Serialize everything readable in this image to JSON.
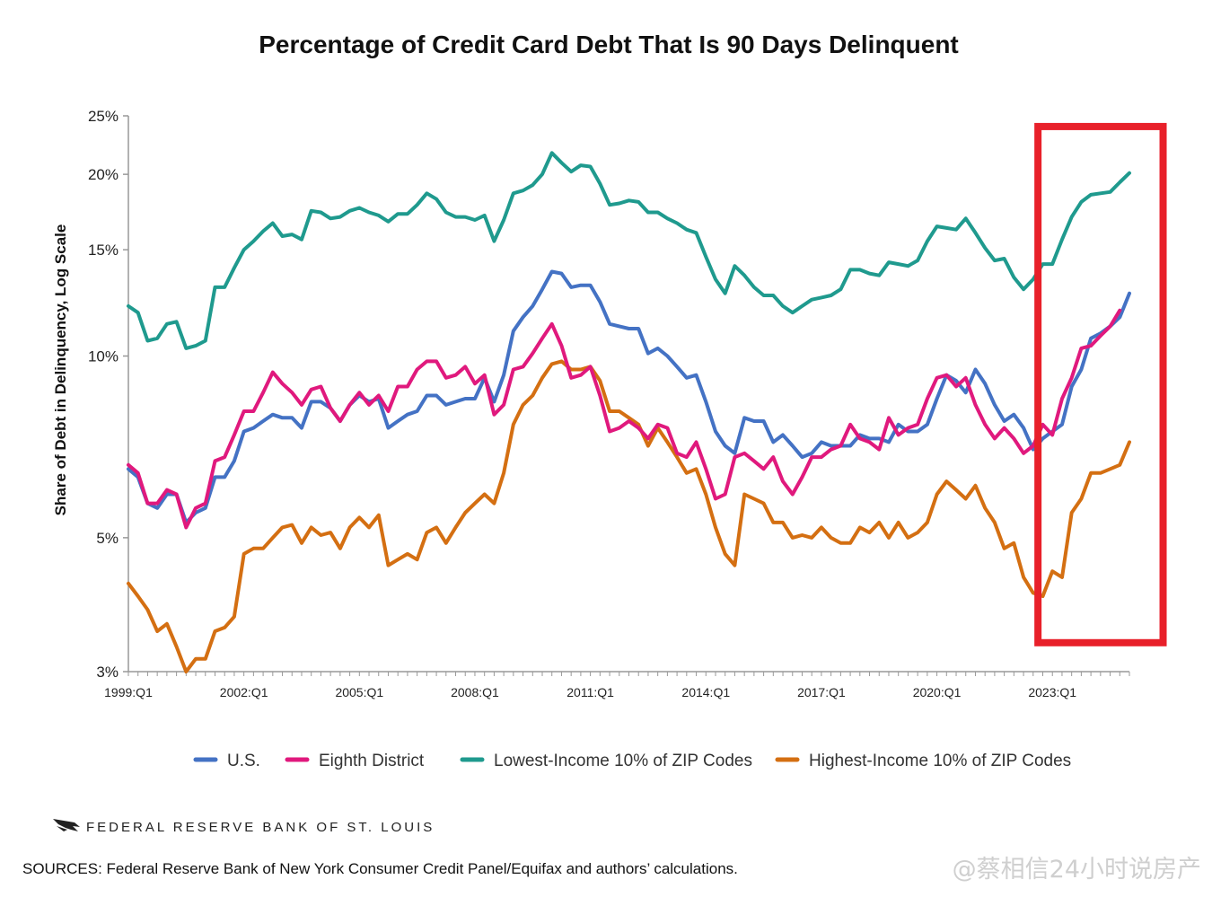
{
  "chart_data": {
    "type": "line",
    "title": "Percentage of Credit Card Debt That Is 90 Days Delinquent",
    "ylabel": "Share of Debt in Delinquency, Log Scale",
    "xlabel": "",
    "yscale": "log",
    "ylim": [
      3,
      25
    ],
    "x_start_year": 1999,
    "y_ticks": [
      {
        "value": 3,
        "label": "3%"
      },
      {
        "value": 5,
        "label": "5%"
      },
      {
        "value": 10,
        "label": "10%"
      },
      {
        "value": 15,
        "label": "15%"
      },
      {
        "value": 20,
        "label": "20%"
      },
      {
        "value": 25,
        "label": "25%"
      }
    ],
    "x_ticks": [
      {
        "index": 0,
        "label": "1999:Q1"
      },
      {
        "index": 12,
        "label": "2002:Q1"
      },
      {
        "index": 24,
        "label": "2005:Q1"
      },
      {
        "index": 36,
        "label": "2008:Q1"
      },
      {
        "index": 48,
        "label": "2011:Q1"
      },
      {
        "index": 60,
        "label": "2014:Q1"
      },
      {
        "index": 72,
        "label": "2017:Q1"
      },
      {
        "index": 84,
        "label": "2020:Q1"
      },
      {
        "index": 96,
        "label": "2023:Q1"
      }
    ],
    "highlight_range": {
      "from_index": 94.5,
      "to_index": 107.5,
      "ymin": 3.35,
      "ymax": 24.0,
      "color": "#e8202a"
    },
    "series": [
      {
        "name": "U.S.",
        "color": "#4472c4",
        "values": [
          6.5,
          6.3,
          5.7,
          5.6,
          5.9,
          5.9,
          5.3,
          5.5,
          5.6,
          6.3,
          6.3,
          6.7,
          7.5,
          7.6,
          7.8,
          8.0,
          7.9,
          7.9,
          7.6,
          8.4,
          8.4,
          8.2,
          7.8,
          8.3,
          8.6,
          8.4,
          8.5,
          7.6,
          7.8,
          8.0,
          8.1,
          8.6,
          8.6,
          8.3,
          8.4,
          8.5,
          8.5,
          9.2,
          8.4,
          9.3,
          11.0,
          11.6,
          12.1,
          12.9,
          13.8,
          13.7,
          13.0,
          13.1,
          13.1,
          12.3,
          11.3,
          11.2,
          11.1,
          11.1,
          10.1,
          10.3,
          10.0,
          9.6,
          9.2,
          9.3,
          8.4,
          7.5,
          7.1,
          6.9,
          7.9,
          7.8,
          7.8,
          7.2,
          7.4,
          7.1,
          6.8,
          6.9,
          7.2,
          7.1,
          7.1,
          7.1,
          7.4,
          7.3,
          7.3,
          7.2,
          7.7,
          7.5,
          7.5,
          7.7,
          8.5,
          9.3,
          9.1,
          8.7,
          9.5,
          9.0,
          8.3,
          7.8,
          8.0,
          7.6,
          7.0,
          7.3,
          7.5,
          7.7,
          8.9,
          9.5,
          10.7,
          10.9,
          11.2,
          11.6,
          12.7
        ]
      },
      {
        "name": "Eighth District",
        "color": "#e0197d",
        "values": [
          6.6,
          6.4,
          5.7,
          5.7,
          6.0,
          5.9,
          5.2,
          5.6,
          5.7,
          6.7,
          6.8,
          7.4,
          8.1,
          8.1,
          8.7,
          9.4,
          9.0,
          8.7,
          8.3,
          8.8,
          8.9,
          8.2,
          7.8,
          8.3,
          8.7,
          8.3,
          8.6,
          8.1,
          8.9,
          8.9,
          9.5,
          9.8,
          9.8,
          9.2,
          9.3,
          9.6,
          9.0,
          9.3,
          8.0,
          8.3,
          9.5,
          9.6,
          10.1,
          10.7,
          11.3,
          10.4,
          9.2,
          9.3,
          9.6,
          8.6,
          7.5,
          7.6,
          7.8,
          7.6,
          7.3,
          7.7,
          7.6,
          6.9,
          6.8,
          7.2,
          6.5,
          5.8,
          5.9,
          6.8,
          6.9,
          6.7,
          6.5,
          6.8,
          6.2,
          5.9,
          6.3,
          6.8,
          6.8,
          7.0,
          7.1,
          7.7,
          7.3,
          7.2,
          7.0,
          7.9,
          7.4,
          7.6,
          7.7,
          8.5,
          9.2,
          9.3,
          8.9,
          9.2,
          8.3,
          7.7,
          7.3,
          7.6,
          7.3,
          6.9,
          7.1,
          7.7,
          7.4,
          8.5,
          9.2,
          10.3,
          10.4,
          10.8,
          11.2,
          11.9
        ]
      },
      {
        "name": "Lowest-Income 10% of ZIP Codes",
        "color": "#1f9a8e",
        "values": [
          12.1,
          11.8,
          10.6,
          10.7,
          11.3,
          11.4,
          10.3,
          10.4,
          10.6,
          13.0,
          13.0,
          14.0,
          15.0,
          15.5,
          16.1,
          16.6,
          15.8,
          15.9,
          15.6,
          17.4,
          17.3,
          16.9,
          17.0,
          17.4,
          17.6,
          17.3,
          17.1,
          16.7,
          17.2,
          17.2,
          17.8,
          18.6,
          18.2,
          17.3,
          17.0,
          17.0,
          16.8,
          17.1,
          15.5,
          16.8,
          18.6,
          18.8,
          19.2,
          20.0,
          21.7,
          20.9,
          20.2,
          20.7,
          20.6,
          19.3,
          17.8,
          17.9,
          18.1,
          18.0,
          17.3,
          17.3,
          16.9,
          16.6,
          16.2,
          16.0,
          14.6,
          13.4,
          12.7,
          14.1,
          13.6,
          13.0,
          12.6,
          12.6,
          12.1,
          11.8,
          12.1,
          12.4,
          12.5,
          12.6,
          12.9,
          13.9,
          13.9,
          13.7,
          13.6,
          14.3,
          14.2,
          14.1,
          14.4,
          15.5,
          16.4,
          16.3,
          16.2,
          16.9,
          16.0,
          15.1,
          14.4,
          14.5,
          13.5,
          12.9,
          13.4,
          14.2,
          14.2,
          15.6,
          17.0,
          18.0,
          18.5,
          18.6,
          18.7,
          19.4,
          20.1
        ]
      },
      {
        "name": "Highest-Income 10% of ZIP Codes",
        "color": "#d46f12",
        "values": [
          4.2,
          4.0,
          3.8,
          3.5,
          3.6,
          3.3,
          3.0,
          3.15,
          3.15,
          3.5,
          3.55,
          3.7,
          4.7,
          4.8,
          4.8,
          5.0,
          5.2,
          5.25,
          4.9,
          5.2,
          5.05,
          5.1,
          4.8,
          5.2,
          5.4,
          5.2,
          5.45,
          4.5,
          4.6,
          4.7,
          4.6,
          5.1,
          5.2,
          4.9,
          5.2,
          5.5,
          5.7,
          5.9,
          5.7,
          6.4,
          7.7,
          8.3,
          8.6,
          9.2,
          9.7,
          9.8,
          9.5,
          9.5,
          9.6,
          9.1,
          8.1,
          8.1,
          7.9,
          7.7,
          7.1,
          7.6,
          7.2,
          6.8,
          6.4,
          6.5,
          5.9,
          5.2,
          4.7,
          4.5,
          5.9,
          5.8,
          5.7,
          5.3,
          5.3,
          5.0,
          5.05,
          5.0,
          5.2,
          5.0,
          4.9,
          4.9,
          5.2,
          5.1,
          5.3,
          5.0,
          5.3,
          5.0,
          5.1,
          5.3,
          5.9,
          6.2,
          6.0,
          5.8,
          6.1,
          5.6,
          5.3,
          4.8,
          4.9,
          4.3,
          4.05,
          4.0,
          4.4,
          4.3,
          5.5,
          5.8,
          6.4,
          6.4,
          6.5,
          6.6,
          7.2
        ]
      }
    ]
  },
  "footer": {
    "brand": "FEDERAL RESERVE BANK OF ST. LOUIS",
    "sources": "SOURCES: Federal Reserve Bank of New York Consumer Credit Panel/Equifax and authors’ calculations.",
    "watermark": "@蔡相信24小时说房产"
  },
  "brand_icon": "eagle-icon"
}
